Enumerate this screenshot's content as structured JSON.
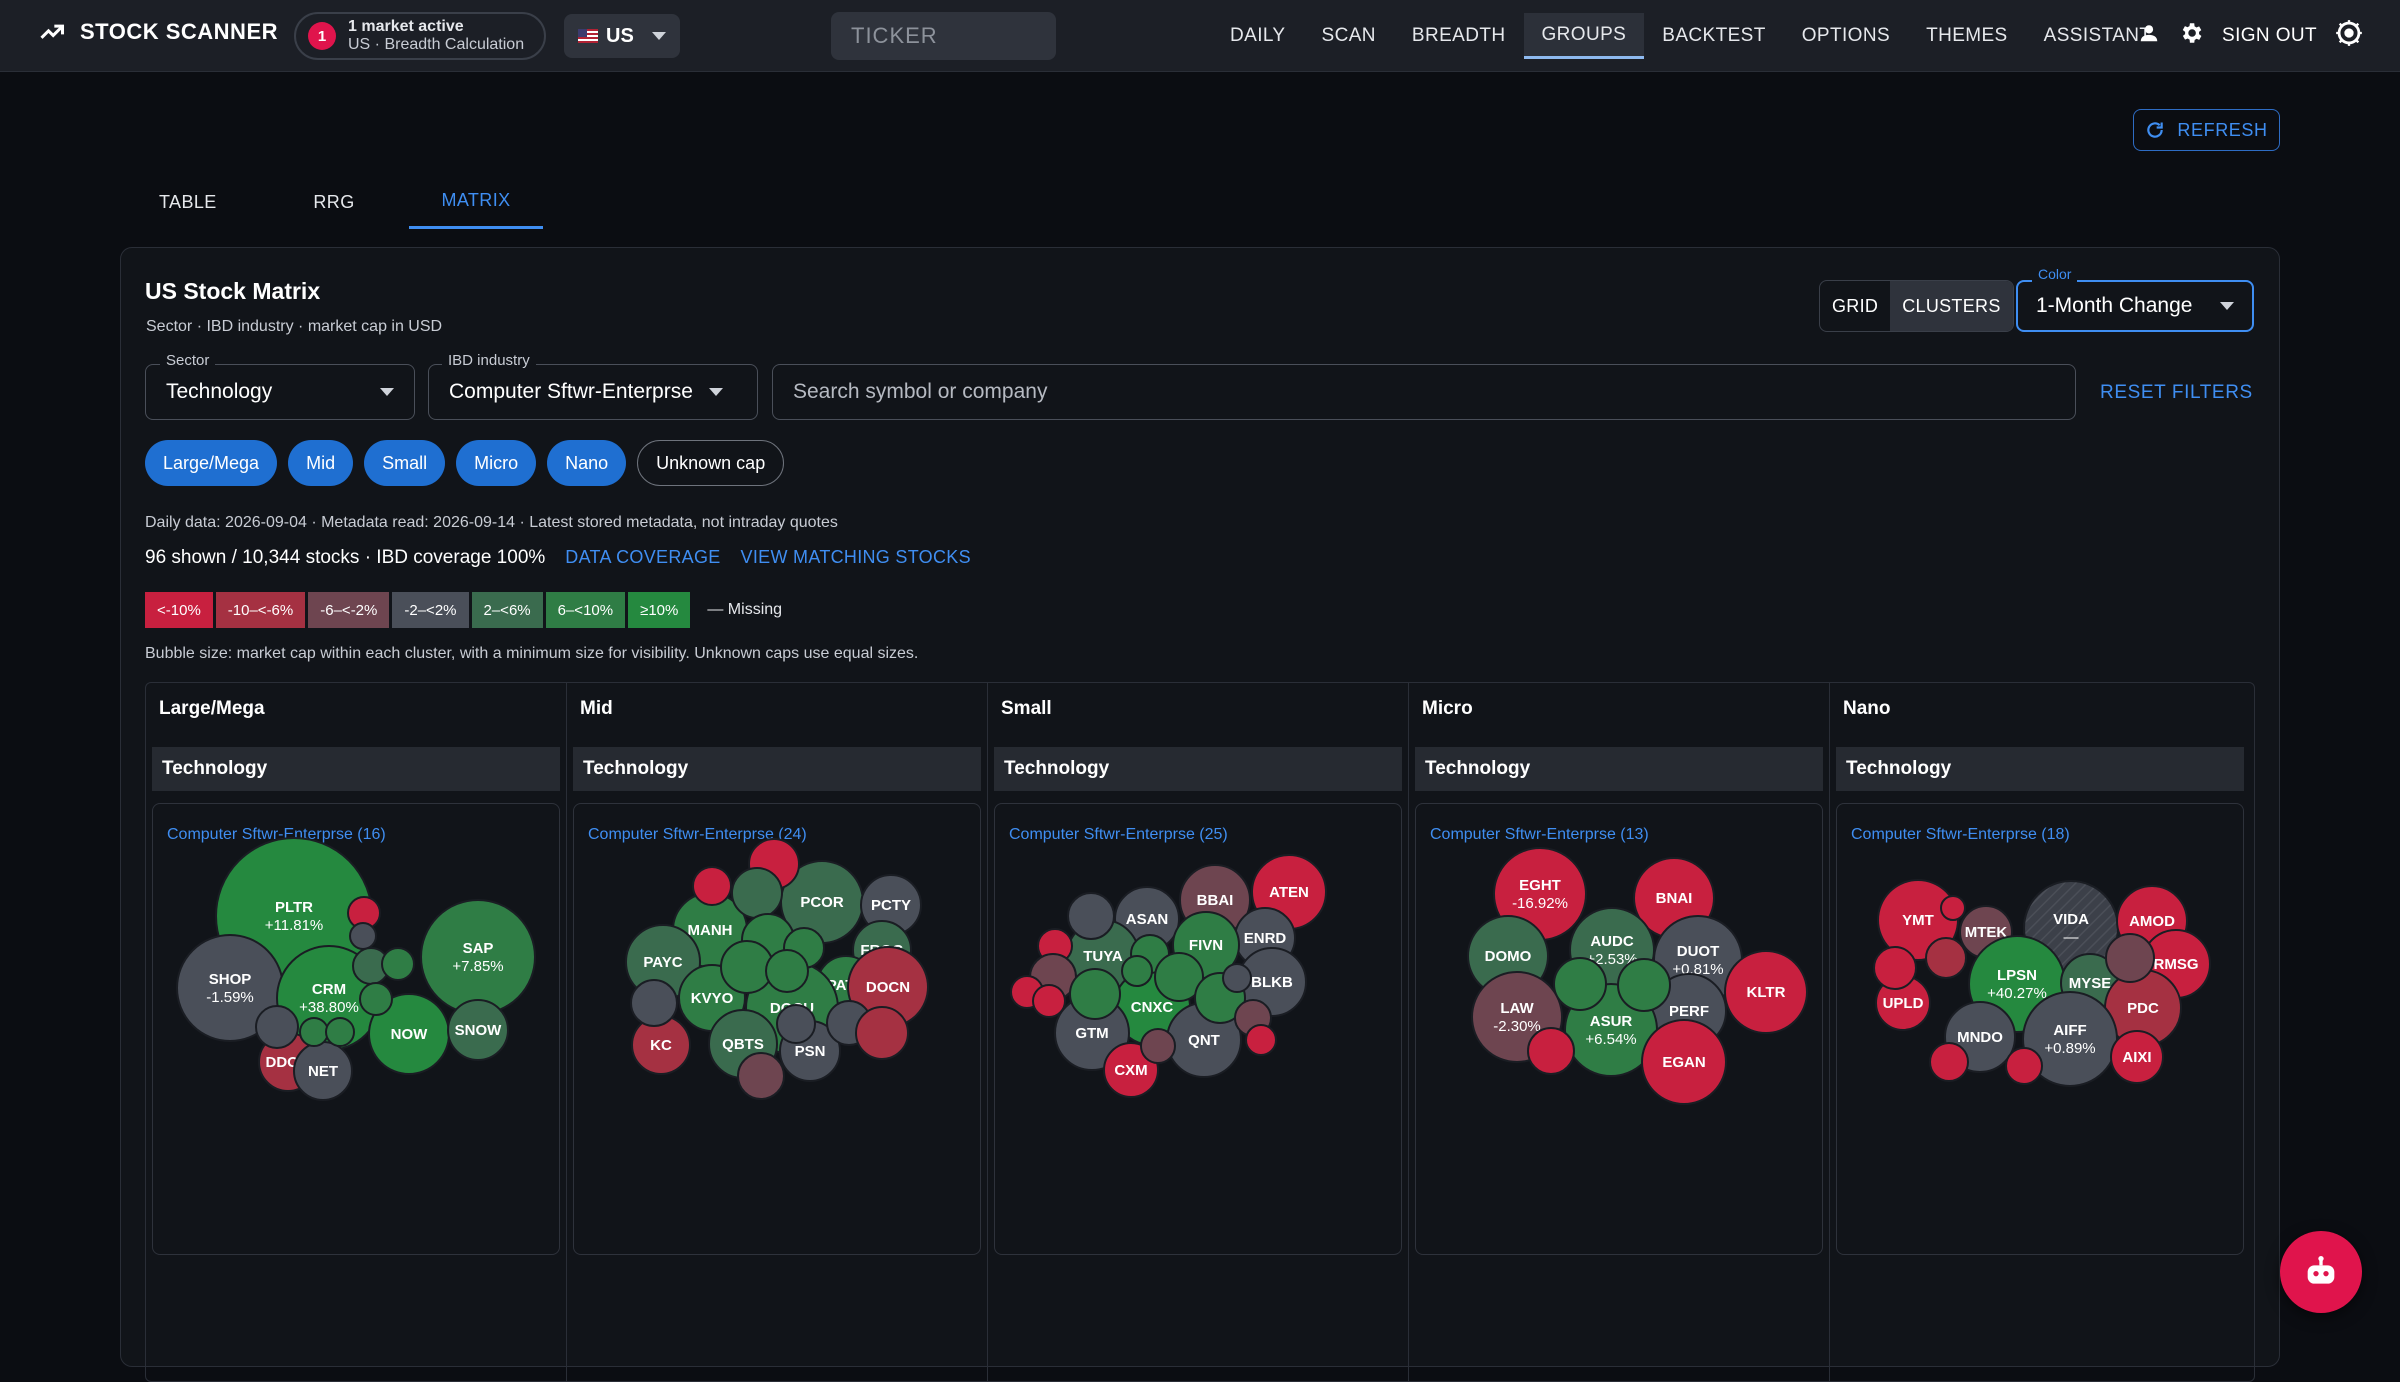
{
  "app": {
    "title": "STOCK SCANNER"
  },
  "status": {
    "count": "1",
    "line1": "1 market active",
    "line2": "US · Breadth Calculation"
  },
  "market": {
    "label": "US"
  },
  "ticker": {
    "placeholder": "TICKER"
  },
  "nav": {
    "items": [
      "DAILY",
      "SCAN",
      "BREADTH",
      "GROUPS",
      "BACKTEST",
      "OPTIONS",
      "THEMES",
      "ASSISTANT"
    ],
    "active": "GROUPS",
    "sign_out": "SIGN OUT"
  },
  "refresh": {
    "label": "REFRESH"
  },
  "tabs": {
    "items": [
      "TABLE",
      "RRG",
      "MATRIX"
    ],
    "active": "MATRIX"
  },
  "panel": {
    "title": "US Stock Matrix",
    "subtitle": "Sector · IBD industry · market cap in USD"
  },
  "view": {
    "grid": "GRID",
    "clusters": "CLUSTERS",
    "active": "CLUSTERS"
  },
  "color": {
    "label": "Color",
    "value": "1-Month Change"
  },
  "filters": {
    "sector_label": "Sector",
    "sector_value": "Technology",
    "industry_label": "IBD industry",
    "industry_value": "Computer Sftwr-Enterprse",
    "search_placeholder": "Search symbol or company",
    "reset": "RESET FILTERS"
  },
  "caps": [
    {
      "label": "Large/Mega",
      "on": true
    },
    {
      "label": "Mid",
      "on": true
    },
    {
      "label": "Small",
      "on": true
    },
    {
      "label": "Micro",
      "on": true
    },
    {
      "label": "Nano",
      "on": true
    },
    {
      "label": "Unknown cap",
      "on": false
    }
  ],
  "meta": {
    "daily": "Daily data: 2026-09-04 · Metadata read: 2026-09-14 · Latest stored metadata, not intraday quotes",
    "shown": "96 shown / 10,344 stocks · IBD coverage 100%",
    "data_coverage": "DATA COVERAGE",
    "view_matching": "VIEW MATCHING STOCKS"
  },
  "legend": {
    "bins": [
      {
        "label": "<-10%",
        "color": "#c8203f"
      },
      {
        "label": "-10–<-6%",
        "color": "#a53142"
      },
      {
        "label": "-6–<-2%",
        "color": "#6e4550"
      },
      {
        "label": "-2–<2%",
        "color": "#4a4f59"
      },
      {
        "label": "2–<6%",
        "color": "#3a6b4e"
      },
      {
        "label": "6–<10%",
        "color": "#2f7d45"
      },
      {
        "label": "≥10%",
        "color": "#25893f"
      }
    ],
    "missing": "— Missing"
  },
  "bubble_note": "Bubble size: market cap within each cluster, with a minimum size for visibility. Unknown caps use equal sizes.",
  "columns": [
    {
      "header": "Large/Mega",
      "sector": "Technology",
      "cluster": "Computer Sftwr-Enterprse (16)",
      "bubbles": [
        {
          "t": "PLTR",
          "v": "+11.81%",
          "c": "#25893f"
        },
        {
          "t": "SAP",
          "v": "+7.85%",
          "c": "#2f7d45"
        },
        {
          "t": "SHOP",
          "v": "-1.59%",
          "c": "#4a4f59"
        },
        {
          "t": "CRM",
          "v": "+38.80%",
          "c": "#25893f"
        },
        {
          "t": "NOW",
          "v": "",
          "c": "#25893f"
        },
        {
          "t": "SNOW",
          "v": "",
          "c": "#3a6b4e"
        },
        {
          "t": "DDOG",
          "v": "",
          "c": "#a53142"
        },
        {
          "t": "NET",
          "v": "",
          "c": "#4a4f59"
        },
        {
          "t": "",
          "v": "",
          "c": "#c8203f"
        },
        {
          "t": "",
          "v": "",
          "c": "#4a4f59"
        },
        {
          "t": "",
          "v": "",
          "c": "#3a6b4e"
        },
        {
          "t": "",
          "v": "",
          "c": "#2f7d45"
        },
        {
          "t": "",
          "v": "",
          "c": "#2f7d45"
        },
        {
          "t": "",
          "v": "",
          "c": "#4a4f59"
        },
        {
          "t": "",
          "v": "",
          "c": "#2f7d45"
        },
        {
          "t": "",
          "v": "",
          "c": "#2f7d45"
        }
      ]
    },
    {
      "header": "Mid",
      "sector": "Technology",
      "cluster": "Computer Sftwr-Enterprse (24)",
      "bubbles": [
        {
          "t": "PCOR",
          "v": "",
          "c": "#3a6b4e"
        },
        {
          "t": "PCTY",
          "v": "",
          "c": "#4a4f59"
        },
        {
          "t": "MANH",
          "v": "",
          "c": "#2f7d45"
        },
        {
          "t": "FROG",
          "v": "",
          "c": "#3a6b4e"
        },
        {
          "t": "PAYC",
          "v": "",
          "c": "#3a6b4e"
        },
        {
          "t": "PATH",
          "v": "",
          "c": "#2f7d45"
        },
        {
          "t": "DOCN",
          "v": "",
          "c": "#a53142"
        },
        {
          "t": "KVYO",
          "v": "",
          "c": "#2f7d45"
        },
        {
          "t": "DOCU",
          "v": "",
          "c": "#2f7d45"
        },
        {
          "t": "QBTS",
          "v": "",
          "c": "#3a6b4e"
        },
        {
          "t": "KC",
          "v": "",
          "c": "#a53142"
        },
        {
          "t": "PSN",
          "v": "",
          "c": "#4a4f59"
        },
        {
          "t": "",
          "v": "",
          "c": "#c8203f"
        },
        {
          "t": "",
          "v": "",
          "c": "#c8203f"
        },
        {
          "t": "",
          "v": "",
          "c": "#3a6b4e"
        },
        {
          "t": "",
          "v": "",
          "c": "#2f7d45"
        },
        {
          "t": "",
          "v": "",
          "c": "#2f7d45"
        },
        {
          "t": "",
          "v": "",
          "c": "#2f7d45"
        },
        {
          "t": "",
          "v": "",
          "c": "#2f7d45"
        },
        {
          "t": "",
          "v": "",
          "c": "#4a4f59"
        },
        {
          "t": "",
          "v": "",
          "c": "#a53142"
        },
        {
          "t": "",
          "v": "",
          "c": "#6e4550"
        },
        {
          "t": "",
          "v": "",
          "c": "#4a4f59"
        },
        {
          "t": "",
          "v": "",
          "c": "#4a4f59"
        }
      ]
    },
    {
      "header": "Small",
      "sector": "Technology",
      "cluster": "Computer Sftwr-Enterprse (25)",
      "bubbles": [
        {
          "t": "BBAI",
          "v": "",
          "c": "#6e4550"
        },
        {
          "t": "ATEN",
          "v": "",
          "c": "#c8203f"
        },
        {
          "t": "ASAN",
          "v": "",
          "c": "#4a4f59"
        },
        {
          "t": "ENRD",
          "v": "",
          "c": "#4a4f59"
        },
        {
          "t": "FIVN",
          "v": "",
          "c": "#2f7d45"
        },
        {
          "t": "TUYA",
          "v": "",
          "c": "#3a6b4e"
        },
        {
          "t": "BLKB",
          "v": "",
          "c": "#4a4f59"
        },
        {
          "t": "CNXC",
          "v": "",
          "c": "#25893f"
        },
        {
          "t": "GTM",
          "v": "",
          "c": "#4a4f59"
        },
        {
          "t": "QNT",
          "v": "",
          "c": "#4a4f59"
        },
        {
          "t": "CXM",
          "v": "",
          "c": "#c8203f"
        },
        {
          "t": "",
          "v": "",
          "c": "#4a4f59"
        },
        {
          "t": "",
          "v": "",
          "c": "#c8203f"
        },
        {
          "t": "",
          "v": "",
          "c": "#6e4550"
        },
        {
          "t": "",
          "v": "",
          "c": "#c8203f"
        },
        {
          "t": "",
          "v": "",
          "c": "#c8203f"
        },
        {
          "t": "",
          "v": "",
          "c": "#2f7d45"
        },
        {
          "t": "",
          "v": "",
          "c": "#2f7d45"
        },
        {
          "t": "",
          "v": "",
          "c": "#2f7d45"
        },
        {
          "t": "",
          "v": "",
          "c": "#2f7d45"
        },
        {
          "t": "",
          "v": "",
          "c": "#4a4f59"
        },
        {
          "t": "",
          "v": "",
          "c": "#2f7d45"
        },
        {
          "t": "",
          "v": "",
          "c": "#6e4550"
        },
        {
          "t": "",
          "v": "",
          "c": "#6e4550"
        },
        {
          "t": "",
          "v": "",
          "c": "#c8203f"
        }
      ]
    },
    {
      "header": "Micro",
      "sector": "Technology",
      "cluster": "Computer Sftwr-Enterprse (13)",
      "bubbles": [
        {
          "t": "EGHT",
          "v": "-16.92%",
          "c": "#c8203f"
        },
        {
          "t": "BNAI",
          "v": "",
          "c": "#c8203f"
        },
        {
          "t": "AUDC",
          "v": "+2.53%",
          "c": "#3a6b4e"
        },
        {
          "t": "DUOT",
          "v": "+0.81%",
          "c": "#4a4f59"
        },
        {
          "t": "DOMO",
          "v": "",
          "c": "#3a6b4e"
        },
        {
          "t": "KLTR",
          "v": "",
          "c": "#c8203f"
        },
        {
          "t": "LAW",
          "v": "-2.30%",
          "c": "#6e4550"
        },
        {
          "t": "PERF",
          "v": "",
          "c": "#4a4f59"
        },
        {
          "t": "ASUR",
          "v": "+6.54%",
          "c": "#2f7d45"
        },
        {
          "t": "EGAN",
          "v": "",
          "c": "#c8203f"
        },
        {
          "t": "",
          "v": "",
          "c": "#2f7d45"
        },
        {
          "t": "",
          "v": "",
          "c": "#2f7d45"
        },
        {
          "t": "",
          "v": "",
          "c": "#c8203f"
        }
      ]
    },
    {
      "header": "Nano",
      "sector": "Technology",
      "cluster": "Computer Sftwr-Enterprse (18)",
      "bubbles": [
        {
          "t": "YMT",
          "v": "",
          "c": "#c8203f"
        },
        {
          "t": "MTEK",
          "v": "",
          "c": "#6e4550"
        },
        {
          "t": "VIDA",
          "v": "—",
          "c": "#4a4f59"
        },
        {
          "t": "AMOD",
          "v": "",
          "c": "#c8203f"
        },
        {
          "t": "RMSG",
          "v": "",
          "c": "#c8203f"
        },
        {
          "t": "LPSN",
          "v": "+40.27%",
          "c": "#25893f"
        },
        {
          "t": "MYSE",
          "v": "",
          "c": "#3a6b4e"
        },
        {
          "t": "UPLD",
          "v": "",
          "c": "#c8203f"
        },
        {
          "t": "PDC",
          "v": "",
          "c": "#a53142"
        },
        {
          "t": "MNDO",
          "v": "",
          "c": "#4a4f59"
        },
        {
          "t": "AIFF",
          "v": "+0.89%",
          "c": "#4a4f59"
        },
        {
          "t": "AIXI",
          "v": "",
          "c": "#c8203f"
        },
        {
          "t": "",
          "v": "",
          "c": "#c8203f"
        },
        {
          "t": "",
          "v": "",
          "c": "#c8203f"
        },
        {
          "t": "",
          "v": "",
          "c": "#a53142"
        },
        {
          "t": "",
          "v": "",
          "c": "#6e4550"
        },
        {
          "t": "",
          "v": "",
          "c": "#c8203f"
        },
        {
          "t": "",
          "v": "",
          "c": "#c8203f"
        }
      ]
    }
  ]
}
